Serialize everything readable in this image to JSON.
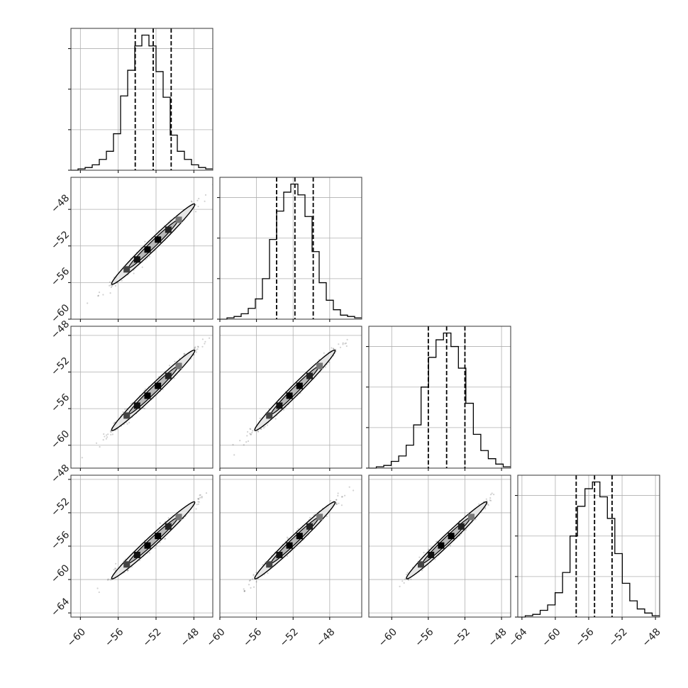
{
  "chart_data": {
    "type": "corner",
    "n_params": 4,
    "title": "",
    "grid": true,
    "color": "#000000",
    "grid_color": "#b0b0b0",
    "quantiles": [
      0.16,
      0.5,
      0.84
    ],
    "params": [
      {
        "index": 0,
        "range": [
          -61,
          -46
        ],
        "ticks": [
          -60,
          -56,
          -52,
          -48
        ],
        "tick_labels": [
          "−60",
          "−56",
          "−52",
          "−48"
        ],
        "quantile_values": [
          -54.2,
          -52.3,
          -50.4
        ],
        "hist_counts": [
          0,
          1,
          2,
          4,
          8,
          14,
          27,
          55,
          74,
          92,
          100,
          92,
          73,
          54,
          26,
          14,
          8,
          4,
          2,
          1
        ]
      },
      {
        "index": 1,
        "range": [
          -60,
          -44.5
        ],
        "ticks": [
          -60,
          -56,
          -52,
          -48
        ],
        "tick_labels": [
          "−60",
          "−56",
          "−52",
          "−48"
        ],
        "quantile_values": [
          -53.8,
          -51.8,
          -49.8
        ],
        "hist_counts": [
          0,
          1,
          2,
          4,
          8,
          15,
          30,
          59,
          80,
          94,
          100,
          92,
          76,
          50,
          27,
          14,
          7,
          3,
          2,
          1
        ]
      },
      {
        "index": 2,
        "range": [
          -62.5,
          -47
        ],
        "ticks": [
          -60,
          -56,
          -52,
          -48
        ],
        "tick_labels": [
          "−60",
          "−56",
          "−52",
          "−48"
        ],
        "quantile_values": [
          -56.0,
          -54.0,
          -52.0
        ],
        "hist_counts": [
          0,
          1,
          2,
          5,
          9,
          17,
          32,
          60,
          82,
          95,
          100,
          90,
          74,
          48,
          25,
          13,
          7,
          3,
          1
        ]
      },
      {
        "index": 3,
        "range": [
          -64.5,
          -47.5
        ],
        "ticks": [
          -64,
          -60,
          -56,
          -52,
          -48
        ],
        "tick_labels": [
          "−64",
          "−60",
          "−56",
          "−52",
          "−48"
        ],
        "quantile_values": [
          -57.5,
          -55.3,
          -53.2
        ],
        "hist_counts": [
          0,
          1,
          2,
          5,
          9,
          18,
          33,
          60,
          82,
          95,
          100,
          89,
          73,
          47,
          25,
          12,
          6,
          3,
          1
        ]
      }
    ],
    "pairs": [
      {
        "row": 1,
        "col": 0,
        "mean": [
          -52.3,
          -51.8
        ],
        "sd": [
          2.0,
          2.0
        ],
        "corr": 0.985
      },
      {
        "row": 2,
        "col": 0,
        "mean": [
          -52.3,
          -54.0
        ],
        "sd": [
          2.0,
          2.0
        ],
        "corr": 0.985
      },
      {
        "row": 2,
        "col": 1,
        "mean": [
          -51.8,
          -54.0
        ],
        "sd": [
          2.0,
          2.0
        ],
        "corr": 0.985
      },
      {
        "row": 3,
        "col": 0,
        "mean": [
          -52.3,
          -55.3
        ],
        "sd": [
          2.0,
          2.1
        ],
        "corr": 0.985
      },
      {
        "row": 3,
        "col": 1,
        "mean": [
          -51.8,
          -55.3
        ],
        "sd": [
          2.0,
          2.1
        ],
        "corr": 0.985
      },
      {
        "row": 3,
        "col": 2,
        "mean": [
          -54.0,
          -55.3
        ],
        "sd": [
          2.0,
          2.1
        ],
        "corr": 0.985
      }
    ]
  }
}
